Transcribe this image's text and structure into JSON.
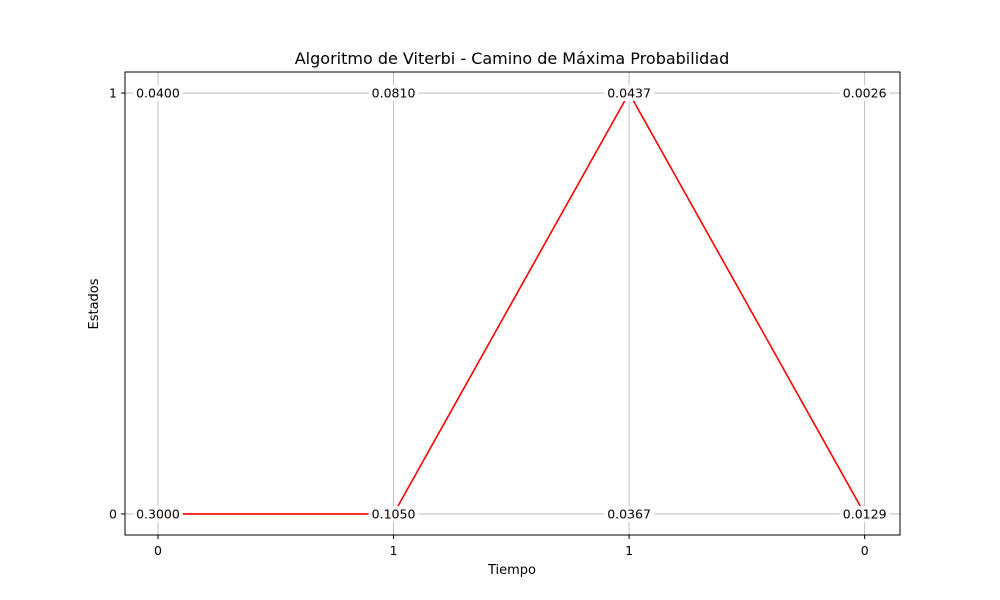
{
  "chart_data": {
    "type": "line",
    "title": "Algoritmo de Viterbi - Camino de Máxima Probabilidad",
    "xlabel": "Tiempo",
    "ylabel": "Estados",
    "x": [
      0,
      1,
      2,
      3
    ],
    "x_tick_labels": [
      "0",
      "1",
      "1",
      "0"
    ],
    "y_ticks": [
      0,
      1
    ],
    "y_tick_labels": [
      "0",
      "1"
    ],
    "xlim": [
      -0.14,
      3.15
    ],
    "ylim": [
      -0.05,
      1.05
    ],
    "grid": true,
    "cell_values": [
      {
        "x": 0,
        "state": 1,
        "label": "0.0400"
      },
      {
        "x": 1,
        "state": 1,
        "label": "0.0810"
      },
      {
        "x": 2,
        "state": 1,
        "label": "0.0437"
      },
      {
        "x": 3,
        "state": 1,
        "label": "0.0026"
      },
      {
        "x": 0,
        "state": 0,
        "label": "0.3000"
      },
      {
        "x": 1,
        "state": 0,
        "label": "0.1050"
      },
      {
        "x": 2,
        "state": 0,
        "label": "0.0367"
      },
      {
        "x": 3,
        "state": 0,
        "label": "0.0129"
      }
    ],
    "series": [
      {
        "values": [
          0,
          0,
          1,
          0
        ],
        "color": "#ff0000"
      }
    ],
    "colors": {
      "path": "#ff0000",
      "marker": "#ffb0b0",
      "grid": "#b0b0b0"
    }
  }
}
